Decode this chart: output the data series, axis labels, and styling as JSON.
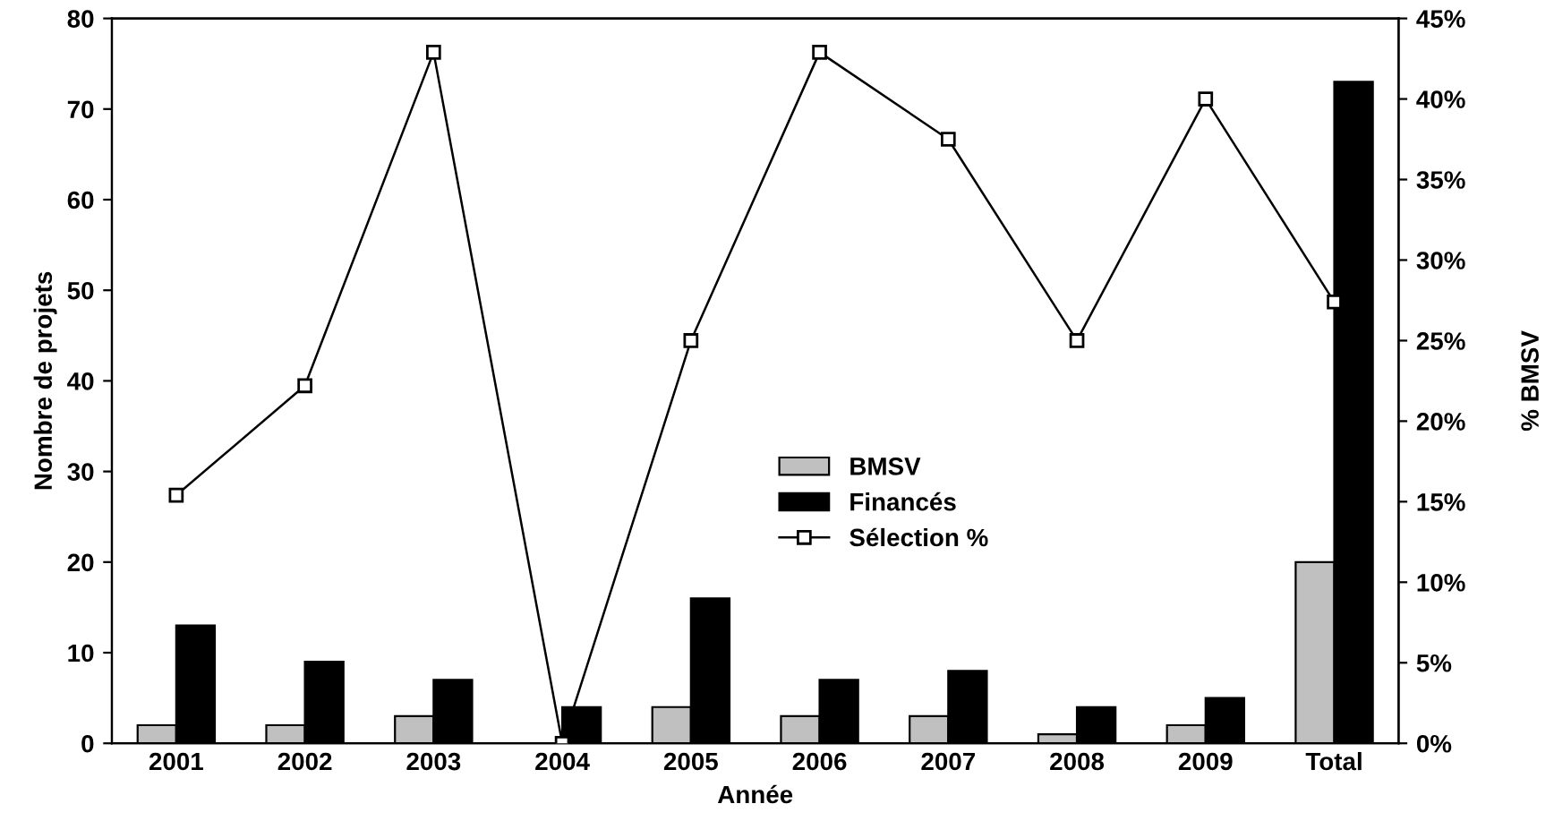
{
  "chart_data": {
    "type": "bar",
    "xlabel": "Année",
    "ylabel": "Nombre de projets",
    "y2label": "% BMSV",
    "categories": [
      "2001",
      "2002",
      "2003",
      "2004",
      "2005",
      "2006",
      "2007",
      "2008",
      "2009",
      "Total"
    ],
    "series": [
      {
        "name": "BMSV",
        "color": "#c0c0c0",
        "values": [
          2,
          2,
          3,
          0,
          4,
          3,
          3,
          1,
          2,
          20
        ]
      },
      {
        "name": "Financés",
        "color": "#000000",
        "values": [
          13,
          9,
          7,
          4,
          16,
          7,
          8,
          4,
          5,
          73
        ]
      },
      {
        "name": "Sélection %",
        "type": "line",
        "axis": "y2",
        "color": "#000000",
        "marker": "square",
        "values": [
          15.4,
          22.2,
          42.9,
          0,
          25,
          42.9,
          37.5,
          25,
          40,
          27.4
        ]
      }
    ],
    "ylim": [
      0,
      80
    ],
    "yticks": [
      0,
      10,
      20,
      30,
      40,
      50,
      60,
      70,
      80
    ],
    "y2lim": [
      0,
      45
    ],
    "y2ticks": [
      {
        "value": 0,
        "label": "0%"
      },
      {
        "value": 5,
        "label": "5%"
      },
      {
        "value": 10,
        "label": "10%"
      },
      {
        "value": 15,
        "label": "15%"
      },
      {
        "value": 20,
        "label": "20%"
      },
      {
        "value": 25,
        "label": "25%"
      },
      {
        "value": 30,
        "label": "30%"
      },
      {
        "value": 35,
        "label": "35%"
      },
      {
        "value": 40,
        "label": "40%"
      },
      {
        "value": 45,
        "label": "45%"
      }
    ],
    "grid": false,
    "legend": "center"
  }
}
